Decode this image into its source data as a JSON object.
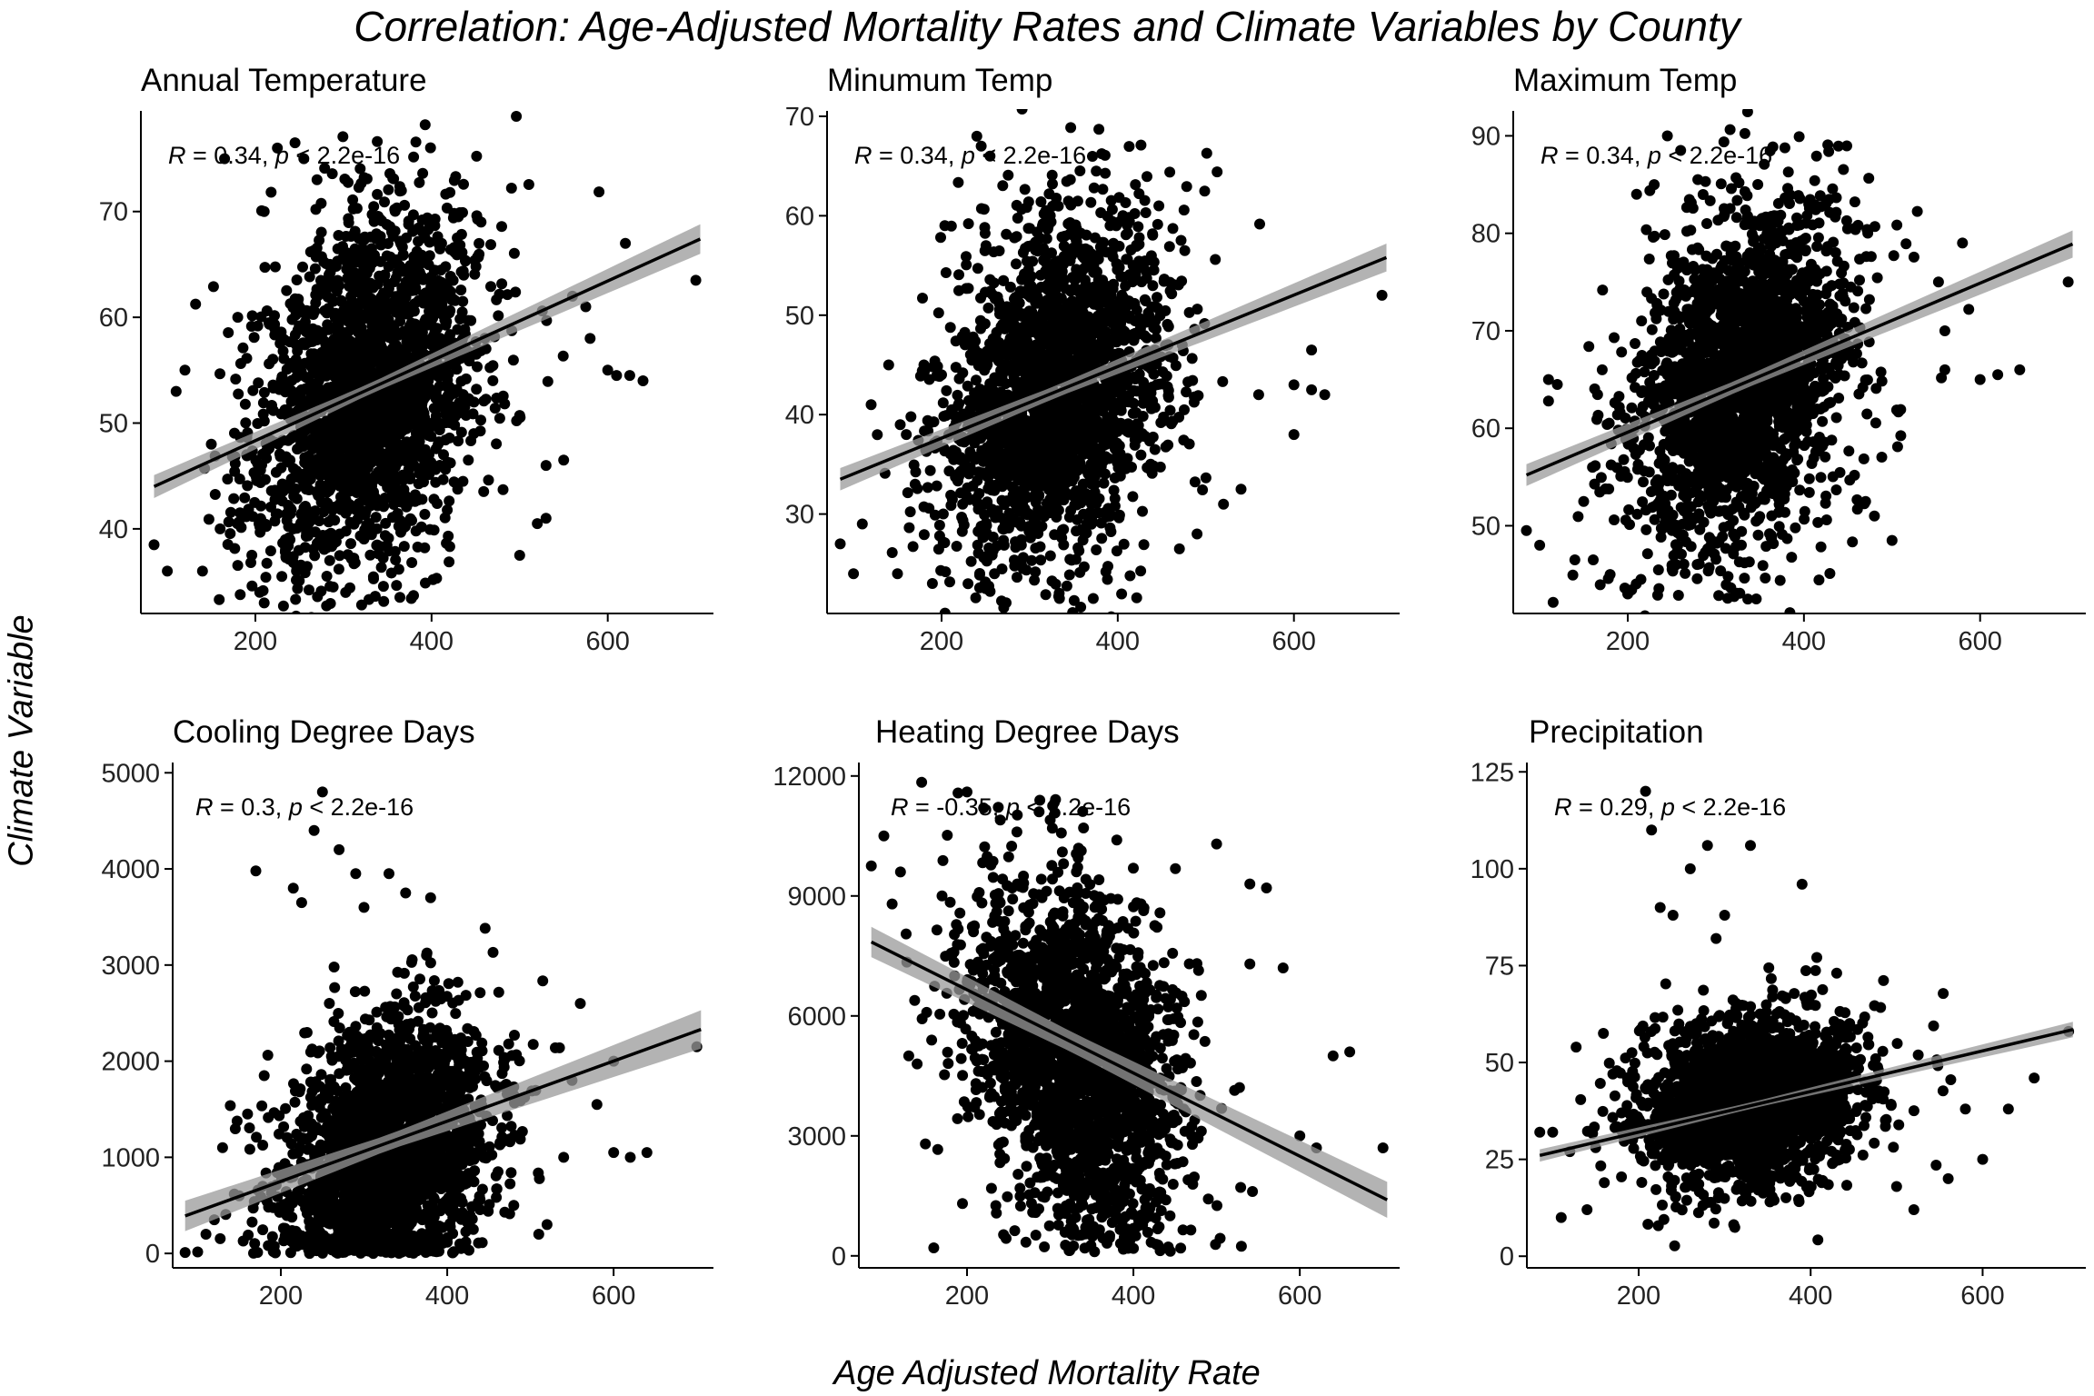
{
  "title": "Correlation: Age-Adjusted Mortality Rates and Climate Variables by County",
  "xlabel": "Age Adjusted Mortality Rate",
  "ylabel": "Climate Variable",
  "colors": {
    "points": "#000000",
    "line": "#000000",
    "band": "#999999"
  },
  "chart_data": [
    {
      "type": "scatter",
      "title": "Annual Temperature",
      "annotation": {
        "r": "R",
        "r_value": " = 0.34, ",
        "p": "p",
        "p_value": " < 2.2e-16"
      },
      "xlim": [
        70,
        720
      ],
      "ylim": [
        32,
        79
      ],
      "xticks": [
        200,
        400,
        600
      ],
      "yticks": [
        40,
        50,
        60,
        70
      ],
      "fit": {
        "x": [
          85,
          705
        ],
        "y": [
          44.0,
          67.4
        ],
        "band": [
          0.5,
          1.4
        ]
      },
      "cloud": {
        "cx": 330,
        "sx": 55,
        "cy": 53,
        "sy": 8,
        "slope": 0.045,
        "n": 2200,
        "seed": 11
      },
      "extra_points": [
        [
          85,
          38.5
        ],
        [
          100,
          36
        ],
        [
          110,
          53
        ],
        [
          120,
          55
        ],
        [
          140,
          36
        ],
        [
          150,
          48
        ],
        [
          160,
          40
        ],
        [
          165,
          75
        ],
        [
          180,
          60
        ],
        [
          210,
          70
        ],
        [
          225,
          76
        ],
        [
          245,
          76.5
        ],
        [
          255,
          75
        ],
        [
          270,
          73
        ],
        [
          210,
          33
        ],
        [
          205,
          34
        ],
        [
          230,
          35.5
        ],
        [
          500,
          37.5
        ],
        [
          520,
          40.5
        ],
        [
          530,
          41
        ],
        [
          530,
          46
        ],
        [
          550,
          46.5
        ],
        [
          600,
          55
        ],
        [
          610,
          54.5
        ],
        [
          625,
          54.5
        ],
        [
          640,
          54
        ],
        [
          620,
          67
        ],
        [
          700,
          63.5
        ],
        [
          560,
          62
        ],
        [
          575,
          61
        ],
        [
          580,
          58
        ]
      ]
    },
    {
      "type": "scatter",
      "title": "Minumum Temp",
      "annotation": {
        "r": "R",
        "r_value": " = 0.34, ",
        "p": "p",
        "p_value": " < 2.2e-16"
      },
      "xlim": [
        70,
        720
      ],
      "ylim": [
        20,
        70
      ],
      "xticks": [
        200,
        400,
        600
      ],
      "yticks": [
        30,
        40,
        50,
        60,
        70
      ],
      "fit": {
        "x": [
          85,
          705
        ],
        "y": [
          33.5,
          55.8
        ],
        "band": [
          0.6,
          1.4
        ]
      },
      "cloud": {
        "cx": 330,
        "sx": 55,
        "cy": 42,
        "sy": 8.5,
        "slope": 0.04,
        "n": 2200,
        "seed": 23
      },
      "extra_points": [
        [
          85,
          27
        ],
        [
          100,
          24
        ],
        [
          110,
          29
        ],
        [
          120,
          41
        ],
        [
          140,
          45
        ],
        [
          150,
          24
        ],
        [
          160,
          38
        ],
        [
          170,
          33
        ],
        [
          180,
          45
        ],
        [
          200,
          44
        ],
        [
          240,
          68
        ],
        [
          245,
          67
        ],
        [
          255,
          66
        ],
        [
          230,
          23
        ],
        [
          250,
          22.5
        ],
        [
          260,
          24
        ],
        [
          470,
          26.5
        ],
        [
          490,
          28
        ],
        [
          520,
          31
        ],
        [
          540,
          32.5
        ],
        [
          560,
          42
        ],
        [
          600,
          43
        ],
        [
          620,
          42.5
        ],
        [
          635,
          42
        ],
        [
          700,
          52
        ],
        [
          600,
          38
        ],
        [
          620,
          46.5
        ]
      ]
    },
    {
      "type": "scatter",
      "title": "Maximum Temp",
      "annotation": {
        "r": "R",
        "r_value": " = 0.34, ",
        "p": "p",
        "p_value": " < 2.2e-16"
      },
      "xlim": [
        70,
        720
      ],
      "ylim": [
        41,
        92
      ],
      "xticks": [
        200,
        400,
        600
      ],
      "yticks": [
        50,
        60,
        70,
        80,
        90
      ],
      "fit": {
        "x": [
          85,
          705
        ],
        "y": [
          55.2,
          78.9
        ],
        "band": [
          0.6,
          1.4
        ]
      },
      "cloud": {
        "cx": 330,
        "sx": 55,
        "cy": 64.5,
        "sy": 8.5,
        "slope": 0.045,
        "n": 2200,
        "seed": 37
      },
      "extra_points": [
        [
          85,
          49.5
        ],
        [
          100,
          48
        ],
        [
          110,
          65
        ],
        [
          120,
          64.5
        ],
        [
          140,
          46.5
        ],
        [
          150,
          52.5
        ],
        [
          160,
          56
        ],
        [
          180,
          45
        ],
        [
          200,
          43
        ],
        [
          210,
          84
        ],
        [
          230,
          85
        ],
        [
          245,
          90
        ],
        [
          260,
          88.5
        ],
        [
          215,
          44.5
        ],
        [
          470,
          52.5
        ],
        [
          480,
          51
        ],
        [
          500,
          48.5
        ],
        [
          560,
          66
        ],
        [
          600,
          65
        ],
        [
          620,
          65.5
        ],
        [
          645,
          66
        ],
        [
          700,
          75
        ],
        [
          580,
          79
        ],
        [
          560,
          70
        ]
      ]
    },
    {
      "type": "scatter",
      "title": "Cooling Degree Days",
      "annotation": {
        "r": "R",
        "r_value": " = 0.3, ",
        "p": "p",
        "p_value": " < 2.2e-16"
      },
      "xlim": [
        70,
        720
      ],
      "ylim": [
        -150,
        5050
      ],
      "xticks": [
        200,
        400,
        600
      ],
      "yticks": [
        0,
        1000,
        2000,
        3000,
        4000,
        5000
      ],
      "fit": {
        "x": [
          85,
          705
        ],
        "y": [
          390,
          2330
        ],
        "band": [
          80,
          200
        ]
      },
      "cloud": {
        "cx": 330,
        "sx": 55,
        "cy": 1050,
        "sy": 700,
        "slope": 3.0,
        "n": 2200,
        "seed": 53,
        "ymin": 0
      },
      "extra_points": [
        [
          85,
          10
        ],
        [
          100,
          15
        ],
        [
          110,
          200
        ],
        [
          120,
          350
        ],
        [
          130,
          1100
        ],
        [
          150,
          600
        ],
        [
          160,
          1450
        ],
        [
          170,
          3980
        ],
        [
          180,
          1850
        ],
        [
          215,
          3800
        ],
        [
          225,
          3650
        ],
        [
          240,
          4400
        ],
        [
          250,
          4800
        ],
        [
          270,
          4200
        ],
        [
          290,
          3950
        ],
        [
          300,
          3600
        ],
        [
          330,
          3950
        ],
        [
          350,
          3750
        ],
        [
          380,
          3700
        ],
        [
          480,
          500
        ],
        [
          510,
          200
        ],
        [
          520,
          300
        ],
        [
          540,
          1000
        ],
        [
          550,
          1800
        ],
        [
          560,
          2600
        ],
        [
          580,
          1550
        ],
        [
          600,
          1050
        ],
        [
          620,
          1000
        ],
        [
          640,
          1050
        ],
        [
          700,
          2150
        ],
        [
          600,
          2000
        ]
      ]
    },
    {
      "type": "scatter",
      "title": "Heating Degree Days",
      "annotation": {
        "r": "R",
        "r_value": " = -0.35, ",
        "p": "p",
        "p_value": " < 2.2e-16"
      },
      "xlim": [
        70,
        720
      ],
      "ylim": [
        -300,
        12200
      ],
      "xticks": [
        200,
        400,
        600
      ],
      "yticks": [
        0,
        3000,
        6000,
        9000,
        12000
      ],
      "fit": {
        "x": [
          85,
          705
        ],
        "y": [
          7850,
          1400
        ],
        "band": [
          250,
          450
        ]
      },
      "cloud": {
        "cx": 330,
        "sx": 55,
        "cy": 4900,
        "sy": 2100,
        "slope": -11.0,
        "n": 2200,
        "seed": 71,
        "ymin": 100
      },
      "extra_points": [
        [
          85,
          9750
        ],
        [
          100,
          10500
        ],
        [
          110,
          8800
        ],
        [
          120,
          9600
        ],
        [
          130,
          5000
        ],
        [
          140,
          4800
        ],
        [
          150,
          2800
        ],
        [
          160,
          200
        ],
        [
          170,
          9000
        ],
        [
          185,
          7000
        ],
        [
          200,
          11600
        ],
        [
          220,
          11200
        ],
        [
          240,
          10900
        ],
        [
          260,
          10600
        ],
        [
          300,
          10900
        ],
        [
          340,
          10700
        ],
        [
          380,
          10400
        ],
        [
          420,
          1200
        ],
        [
          470,
          3000
        ],
        [
          500,
          10300
        ],
        [
          540,
          9300
        ],
        [
          560,
          9200
        ],
        [
          540,
          7300
        ],
        [
          580,
          7200
        ],
        [
          600,
          3000
        ],
        [
          620,
          2700
        ],
        [
          640,
          5000
        ],
        [
          660,
          5100
        ],
        [
          700,
          2700
        ]
      ]
    },
    {
      "type": "scatter",
      "title": "Precipitation",
      "annotation": {
        "r": "R",
        "r_value": " = 0.29, ",
        "p": "p",
        "p_value": " < 2.2e-16"
      },
      "xlim": [
        70,
        720
      ],
      "ylim": [
        -3,
        126
      ],
      "xticks": [
        200,
        400,
        600
      ],
      "yticks": [
        0,
        25,
        50,
        75,
        100,
        125
      ],
      "fit": {
        "x": [
          85,
          705
        ],
        "y": [
          26,
          58.5
        ],
        "band": [
          0.8,
          2.0
        ]
      },
      "cloud": {
        "cx": 330,
        "sx": 55,
        "cy": 40,
        "sy": 11,
        "slope": 0.03,
        "n": 2200,
        "seed": 89,
        "ymin": 2
      },
      "extra_points": [
        [
          85,
          32
        ],
        [
          100,
          32
        ],
        [
          110,
          10
        ],
        [
          120,
          27
        ],
        [
          140,
          12
        ],
        [
          150,
          28
        ],
        [
          160,
          19
        ],
        [
          170,
          47
        ],
        [
          180,
          37
        ],
        [
          208,
          120
        ],
        [
          215,
          110
        ],
        [
          225,
          90
        ],
        [
          240,
          88
        ],
        [
          260,
          100
        ],
        [
          280,
          106
        ],
        [
          300,
          88
        ],
        [
          330,
          106
        ],
        [
          390,
          96
        ],
        [
          290,
          82
        ],
        [
          500,
          18
        ],
        [
          520,
          12
        ],
        [
          560,
          20
        ],
        [
          580,
          38
        ],
        [
          600,
          25
        ],
        [
          630,
          38
        ],
        [
          660,
          46
        ],
        [
          700,
          58
        ]
      ]
    }
  ]
}
